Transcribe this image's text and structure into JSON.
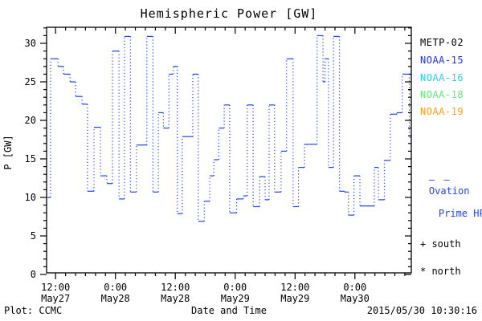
{
  "title": "Hemispheric Power [GW]",
  "colors": {
    "line": "#2244ee",
    "frame": "#000000",
    "metp02": "#000000",
    "noaa15": "#2233dd",
    "noaa16": "#33ccee",
    "noaa18": "#66e680",
    "noaa19": "#ffa020"
  },
  "legend": {
    "satellites": [
      {
        "label": "METP-02",
        "color": "#000000"
      },
      {
        "label": "NOAA-15",
        "color": "#2233dd"
      },
      {
        "label": "NOAA-16",
        "color": "#33ccee"
      },
      {
        "label": "NOAA-18",
        "color": "#66e680"
      },
      {
        "label": "NOAA-19",
        "color": "#ffa020"
      }
    ],
    "ovation": {
      "dash": "– —",
      "line1": "Ovation",
      "line2": "Prime HPI",
      "color": "#2244ee"
    },
    "south_marker": "+ south",
    "north_marker": "* north"
  },
  "footer": {
    "left": "Plot: CCMC",
    "right": "2015/05/30 10:30:16"
  },
  "chart_data": {
    "type": "line",
    "subtype": "step-function, dotted vertical connectors",
    "title": "Hemispheric Power [GW]",
    "xlabel": "Date and Time",
    "ylabel": "P [GW]",
    "ylim": [
      0,
      32
    ],
    "grid": false,
    "legend_position": "right",
    "x_axis_hours_from_may27_00": {
      "start": 10.2,
      "end": 83.3
    },
    "x_major_ticks": [
      {
        "hours": 12,
        "time": "12:00",
        "date": "May27"
      },
      {
        "hours": 24,
        "time": "0:00",
        "date": "May28"
      },
      {
        "hours": 36,
        "time": "12:00",
        "date": "May28"
      },
      {
        "hours": 48,
        "time": "0:00",
        "date": "May29"
      },
      {
        "hours": 60,
        "time": "12:00",
        "date": "May29"
      },
      {
        "hours": 72,
        "time": "0:00",
        "date": "May30"
      }
    ],
    "x_minor_interval_hours": 2,
    "y_major_ticks": [
      0,
      5,
      10,
      15,
      20,
      25,
      30
    ],
    "y_minor_interval": 1,
    "series": [
      {
        "name": "Ovation Prime HPI",
        "color": "#2244ee",
        "units": "GW",
        "steps_hours_value": [
          [
            10.2,
            10.0
          ],
          [
            11.0,
            28.0
          ],
          [
            12.5,
            27.0
          ],
          [
            13.6,
            26.0
          ],
          [
            14.9,
            25.0
          ],
          [
            16.0,
            23.1
          ],
          [
            17.3,
            22.1
          ],
          [
            18.4,
            10.8
          ],
          [
            19.7,
            19.1
          ],
          [
            21.0,
            12.8
          ],
          [
            22.3,
            11.8
          ],
          [
            23.4,
            29.0
          ],
          [
            24.7,
            9.8
          ],
          [
            25.8,
            30.9
          ],
          [
            27.0,
            10.7
          ],
          [
            28.2,
            16.8
          ],
          [
            30.3,
            30.9
          ],
          [
            31.5,
            10.7
          ],
          [
            32.6,
            21.0
          ],
          [
            33.6,
            19.0
          ],
          [
            34.7,
            26.0
          ],
          [
            35.6,
            27.0
          ],
          [
            36.4,
            7.9
          ],
          [
            37.4,
            17.9
          ],
          [
            39.5,
            26.0
          ],
          [
            40.6,
            6.9
          ],
          [
            41.8,
            9.5
          ],
          [
            42.9,
            12.8
          ],
          [
            43.7,
            14.9
          ],
          [
            44.7,
            19.0
          ],
          [
            45.8,
            22.0
          ],
          [
            46.9,
            8.0
          ],
          [
            48.3,
            9.8
          ],
          [
            49.6,
            10.2
          ],
          [
            50.4,
            22.0
          ],
          [
            51.6,
            8.8
          ],
          [
            52.9,
            12.7
          ],
          [
            54.0,
            9.7
          ],
          [
            54.8,
            22.0
          ],
          [
            55.9,
            10.7
          ],
          [
            57.2,
            16.0
          ],
          [
            58.3,
            28.0
          ],
          [
            59.6,
            8.8
          ],
          [
            60.7,
            13.9
          ],
          [
            61.9,
            16.9
          ],
          [
            64.4,
            31.0
          ],
          [
            65.6,
            25.0
          ],
          [
            66.0,
            28.0
          ],
          [
            66.7,
            13.9
          ],
          [
            67.7,
            30.9
          ],
          [
            68.9,
            10.8
          ],
          [
            69.9,
            10.7
          ],
          [
            70.7,
            7.7
          ],
          [
            71.8,
            12.8
          ],
          [
            73.0,
            8.9
          ],
          [
            75.9,
            13.9
          ],
          [
            76.7,
            9.7
          ],
          [
            77.9,
            14.8
          ],
          [
            79.1,
            20.8
          ],
          [
            80.4,
            21.0
          ],
          [
            81.5,
            26.0
          ],
          [
            82.9,
            17.8
          ]
        ],
        "end_hours": 83.3
      }
    ]
  }
}
